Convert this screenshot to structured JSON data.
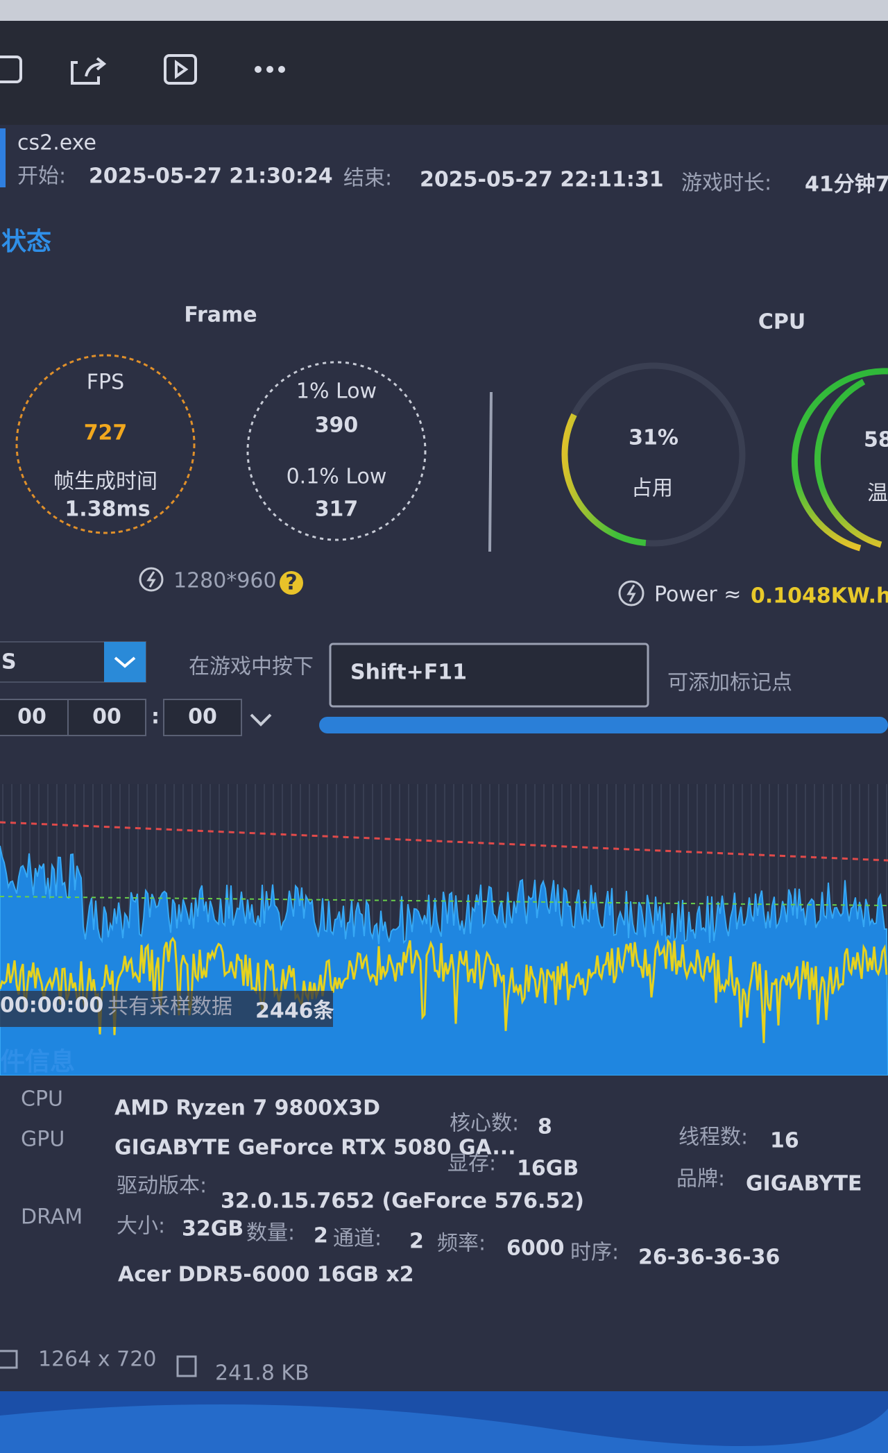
{
  "app": {
    "process": "cs2.exe",
    "start_label": "开始:",
    "start": "2025-05-27 21:30:24",
    "end_label": "结束:",
    "end": "2025-05-27 22:11:31",
    "duration_label": "游戏时长:",
    "duration": "41分钟7"
  },
  "status_title": "状态",
  "frame": {
    "title": "Frame",
    "fps_label": "FPS",
    "fps": 727,
    "frame_time_label": "帧生成时间",
    "frame_time": "1.38ms",
    "low1_label": "1% Low",
    "low1": 390,
    "low01_label": "0.1% Low",
    "low01": 317,
    "resolution": "1280*960",
    "help": "?"
  },
  "cpu": {
    "title": "CPU",
    "usage": {
      "value": 31,
      "label": "31%"
    },
    "usage_label": "占用",
    "temp": "58",
    "temp_label": "温",
    "power_label": "Power ≈",
    "power": "0.1048KW.h"
  },
  "controls": {
    "mode": "S",
    "hotkey_prompt": "在游戏中按下",
    "hotkey": "Shift+F11",
    "hotkey_hint": "可添加标记点",
    "time": [
      "00",
      "00",
      "00"
    ]
  },
  "chart": {
    "time": "00:00:00",
    "samples_label": "共有采样数据",
    "samples": "2446条"
  },
  "hardware": {
    "title": "硬件信息",
    "cpu": {
      "label": "CPU",
      "name": "AMD Ryzen 7 9800X3D",
      "cores_label": "核心数:",
      "cores": "8",
      "threads_label": "线程数:",
      "threads": "16"
    },
    "gpu": {
      "label": "GPU",
      "name": "GIGABYTE GeForce RTX 5080 GA...",
      "vram_label": "显存:",
      "vram": "16GB",
      "brand_label": "品牌:",
      "brand": "GIGABYTE",
      "driver_label": "驱动版本:",
      "driver": "32.0.15.7652 (GeForce 576.52)"
    },
    "dram": {
      "label": "DRAM",
      "size_label": "大小:",
      "size": "32GB",
      "count_label": "数量:",
      "count": "2",
      "channels_label": "通道:",
      "channels": "2",
      "freq_label": "频率:",
      "freq": "6000",
      "timing_label": "时序:",
      "timing": "26-36-36-36",
      "name": "Acer DDR5-6000 16GB x2"
    }
  },
  "footer": {
    "dimensions": "1264 x 720",
    "size": "241.8 KB"
  }
}
